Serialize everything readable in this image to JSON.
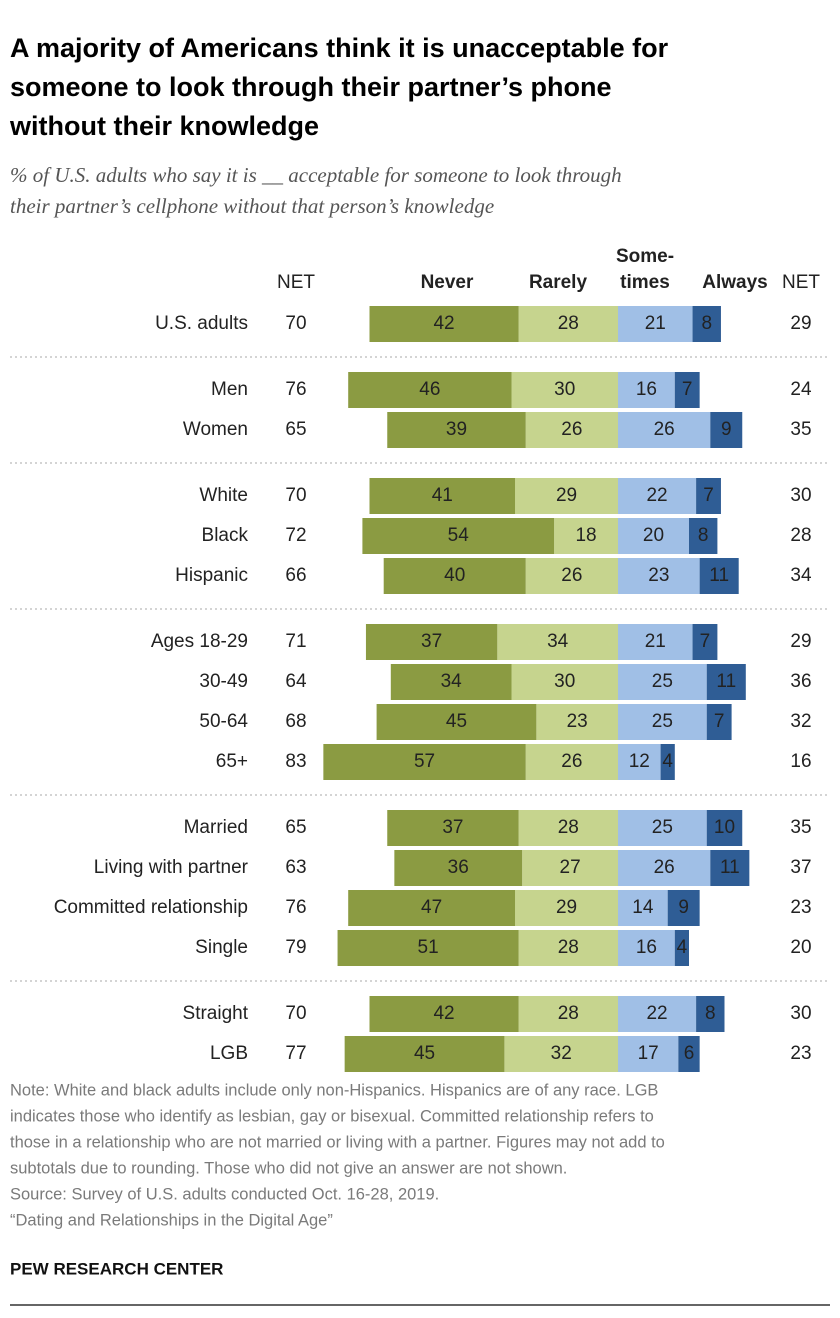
{
  "chart_data": {
    "type": "diverging_bar",
    "title": [
      "A majority of Americans think it is unacceptable for",
      "someone to look through their partner’s phone",
      "without their knowledge"
    ],
    "subtitle": [
      "% of U.S. adults who say it is __ acceptable for someone to look through",
      "their partner’s cellphone without that person’s knowledge"
    ],
    "categories": [
      [
        "U.S. adults"
      ],
      [
        "Men",
        "Women"
      ],
      [
        "White",
        "Black",
        "Hispanic"
      ],
      [
        "Ages 18-29",
        "30-49",
        "50-64",
        "65+"
      ],
      [
        "Married",
        "Living with partner",
        "Committed relationship",
        "Single"
      ],
      [
        "Straight",
        "LGB"
      ]
    ],
    "series": [
      {
        "name": "Never",
        "color": "#8b9b42",
        "values": [
          [
            42
          ],
          [
            46,
            39
          ],
          [
            41,
            54,
            40
          ],
          [
            37,
            34,
            45,
            57
          ],
          [
            37,
            36,
            47,
            51
          ],
          [
            42,
            45
          ]
        ]
      },
      {
        "name": "Rarely",
        "color": "#c6d48e",
        "values": [
          [
            28
          ],
          [
            30,
            26
          ],
          [
            29,
            18,
            26
          ],
          [
            34,
            30,
            23,
            26
          ],
          [
            28,
            27,
            29,
            28
          ],
          [
            28,
            32
          ]
        ]
      },
      {
        "name": "Some-\ntimes",
        "color": "#a0bfe6",
        "values": [
          [
            21
          ],
          [
            16,
            26
          ],
          [
            22,
            20,
            23
          ],
          [
            21,
            25,
            25,
            12
          ],
          [
            25,
            26,
            14,
            16
          ],
          [
            22,
            17
          ]
        ]
      },
      {
        "name": "Always",
        "color": "#2f5d95",
        "values": [
          [
            8
          ],
          [
            7,
            9
          ],
          [
            7,
            8,
            11
          ],
          [
            7,
            11,
            7,
            4
          ],
          [
            10,
            11,
            9,
            4
          ],
          [
            8,
            6
          ]
        ]
      }
    ],
    "net_left": {
      "label": "NET",
      "values": [
        [
          70
        ],
        [
          76,
          65
        ],
        [
          70,
          72,
          66
        ],
        [
          71,
          64,
          68,
          83
        ],
        [
          65,
          63,
          76,
          79
        ],
        [
          70,
          77
        ]
      ]
    },
    "net_right": {
      "label": "NET",
      "values": [
        [
          29
        ],
        [
          24,
          35
        ],
        [
          30,
          28,
          34
        ],
        [
          29,
          36,
          32,
          16
        ],
        [
          35,
          37,
          23,
          20
        ],
        [
          30,
          23
        ]
      ]
    },
    "note_lines": [
      "Note: White and black adults include only non-Hispanics. Hispanics are of any race. LGB",
      "indicates those who identify as lesbian, gay or bisexual. Committed relationship refers to",
      "those in a relationship who are not married or living with a partner. Figures may not add to",
      "subtotals due to rounding. Those who did not give an answer are not shown.",
      "Source: Survey of U.S. adults conducted Oct. 16-28, 2019.",
      "“Dating and Relationships in the Digital Age”"
    ],
    "source_org": "PEW RESEARCH CENTER"
  }
}
